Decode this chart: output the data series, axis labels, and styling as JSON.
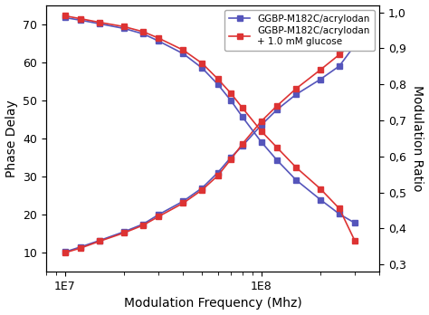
{
  "title": "",
  "xlabel": "Modulation Frequency (Mhz)",
  "ylabel_left": "Phase Delay",
  "ylabel_right": "Modulation Ratio",
  "legend1": "GGBP-M182C/acrylodan",
  "legend2": "GGBP-M182C/acrylodan\n+ 1.0 mM glucose",
  "color_blue": "#5555bb",
  "color_red": "#dd3333",
  "freq": [
    10000000.0,
    12000000.0,
    15000000.0,
    20000000.0,
    25000000.0,
    30000000.0,
    40000000.0,
    50000000.0,
    60000000.0,
    70000000.0,
    80000000.0,
    100000000.0,
    120000000.0,
    150000000.0,
    200000000.0,
    250000000.0,
    300000000.0
  ],
  "phase_blue": [
    10.2,
    11.5,
    13.2,
    15.5,
    17.5,
    20.0,
    23.5,
    27.0,
    31.0,
    35.0,
    38.0,
    43.5,
    47.5,
    51.5,
    55.5,
    59.0,
    64.5
  ],
  "phase_red": [
    10.0,
    11.2,
    13.0,
    15.2,
    17.2,
    19.5,
    23.0,
    26.5,
    30.2,
    34.5,
    38.5,
    44.5,
    48.5,
    53.0,
    58.0,
    62.0,
    65.5
  ],
  "mod_blue": [
    0.985,
    0.978,
    0.968,
    0.955,
    0.94,
    0.92,
    0.885,
    0.845,
    0.8,
    0.755,
    0.71,
    0.64,
    0.59,
    0.535,
    0.48,
    0.44,
    0.415
  ],
  "mod_red": [
    0.99,
    0.982,
    0.972,
    0.96,
    0.946,
    0.928,
    0.895,
    0.858,
    0.815,
    0.775,
    0.735,
    0.67,
    0.625,
    0.57,
    0.51,
    0.455,
    0.365
  ],
  "xlim": [
    8000000.0,
    400000000.0
  ],
  "ylim_left": [
    5,
    75
  ],
  "ylim_right": [
    0.28,
    1.02
  ],
  "yticks_left": [
    10,
    20,
    30,
    40,
    50,
    60,
    70
  ],
  "yticks_right": [
    0.3,
    0.4,
    0.5,
    0.6,
    0.7,
    0.8,
    0.9,
    1.0
  ],
  "ytick_labels_right": [
    "0,3",
    "0,4",
    "0,5",
    "0,6",
    "0,7",
    "0,8",
    "0,9",
    "1,0"
  ],
  "background_color": "#ffffff"
}
